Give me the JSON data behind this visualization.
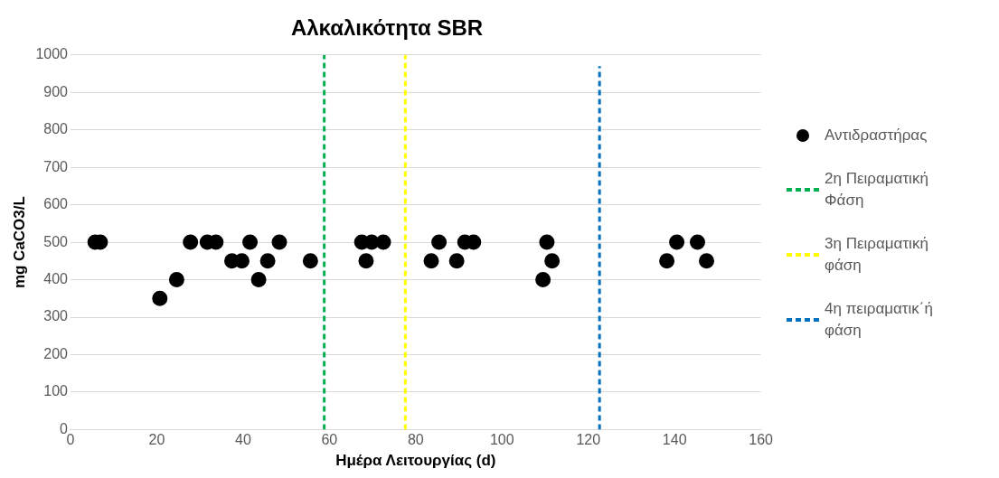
{
  "chart_data": {
    "type": "scatter",
    "title": "Αλκαλικότητα SBR",
    "xlabel": "Ημέρα Λειτουργίας (d)",
    "ylabel": "mg CaCO3/L",
    "xlim": [
      0,
      160
    ],
    "xticks": [
      0,
      20,
      40,
      60,
      80,
      100,
      120,
      140,
      160
    ],
    "ylim": [
      0,
      1000
    ],
    "yticks": [
      0,
      100,
      200,
      300,
      400,
      500,
      600,
      700,
      800,
      900,
      1000
    ],
    "grid": "y",
    "legend": "right",
    "marker": "circle",
    "series": [
      {
        "name": "Αντιδραστήρας",
        "color": "#000000",
        "x": [
          5.7,
          6.9,
          20.7,
          24.6,
          27.8,
          31.7,
          33.7,
          37.4,
          39.7,
          41.6,
          43.6,
          45.7,
          48.4,
          55.6,
          67.5,
          68.5,
          69.8,
          72.5,
          83.6,
          85.4,
          89.5,
          91.4,
          93.4,
          109.5,
          110.4,
          111.6,
          138.2,
          140.5,
          145.3,
          147.4
        ],
        "values": [
          500,
          500,
          350,
          400,
          500,
          500,
          500,
          450,
          450,
          500,
          400,
          450,
          500,
          450,
          500,
          450,
          500,
          500,
          450,
          500,
          450,
          500,
          500,
          400,
          500,
          450,
          450,
          500,
          500,
          450
        ]
      },
      {
        "name": "2η Πειραματική Φάση",
        "type": "line",
        "color": "#00b050",
        "line_style": "dashed",
        "marker": "none",
        "x": [
          58.8,
          58.8
        ],
        "values": [
          0,
          1000
        ]
      },
      {
        "name": "3η Πειραματική φάση",
        "type": "line",
        "color": "#ffff00",
        "line_style": "dashed",
        "marker": "none",
        "x": [
          77.6,
          77.6
        ],
        "values": [
          0,
          1000
        ]
      },
      {
        "name": "4η πειραματικ΄ή φάση",
        "type": "line",
        "color": "#0070c0",
        "line_style": "dashed",
        "marker": "none",
        "x": [
          122.6,
          122.6
        ],
        "values": [
          0,
          970
        ]
      }
    ]
  }
}
